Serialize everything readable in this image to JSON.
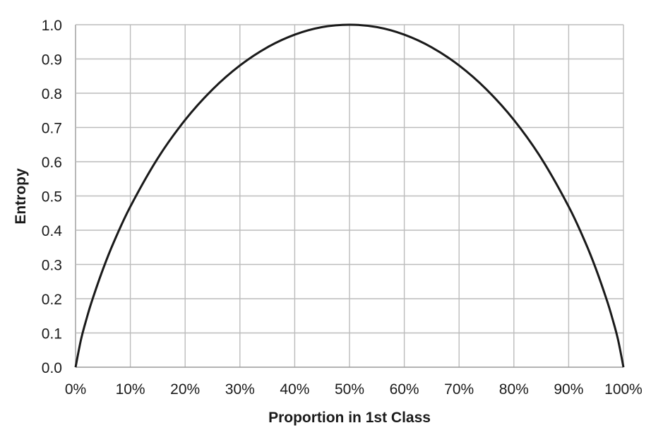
{
  "chart_data": {
    "type": "line",
    "xlabel": "Proportion in 1st Class",
    "ylabel": "Entropy",
    "xlim": [
      0,
      1
    ],
    "ylim": [
      0,
      1
    ],
    "x_ticks": [
      0,
      0.1,
      0.2,
      0.3,
      0.4,
      0.5,
      0.6,
      0.7,
      0.8,
      0.9,
      1.0
    ],
    "x_tick_labels": [
      "0%",
      "10%",
      "20%",
      "30%",
      "40%",
      "50%",
      "60%",
      "70%",
      "80%",
      "90%",
      "100%"
    ],
    "y_ticks": [
      0,
      0.1,
      0.2,
      0.3,
      0.4,
      0.5,
      0.6,
      0.7,
      0.8,
      0.9,
      1.0
    ],
    "y_tick_labels": [
      "0.0",
      "0.1",
      "0.2",
      "0.3",
      "0.4",
      "0.5",
      "0.6",
      "0.7",
      "0.8",
      "0.9",
      "1.0"
    ],
    "grid": true,
    "series": [
      {
        "color": "#1a1a1a",
        "x": [
          0,
          0.01,
          0.02,
          0.03,
          0.05,
          0.07,
          0.1,
          0.15,
          0.2,
          0.25,
          0.3,
          0.35,
          0.4,
          0.45,
          0.5,
          0.55,
          0.6,
          0.65,
          0.7,
          0.75,
          0.8,
          0.85,
          0.9,
          0.93,
          0.95,
          0.97,
          0.98,
          0.99,
          1.0
        ],
        "y": [
          0,
          0.081,
          0.141,
          0.194,
          0.286,
          0.366,
          0.469,
          0.61,
          0.722,
          0.811,
          0.881,
          0.934,
          0.971,
          0.993,
          1.0,
          0.993,
          0.971,
          0.934,
          0.881,
          0.811,
          0.722,
          0.61,
          0.469,
          0.366,
          0.286,
          0.194,
          0.141,
          0.081,
          0
        ]
      }
    ]
  }
}
